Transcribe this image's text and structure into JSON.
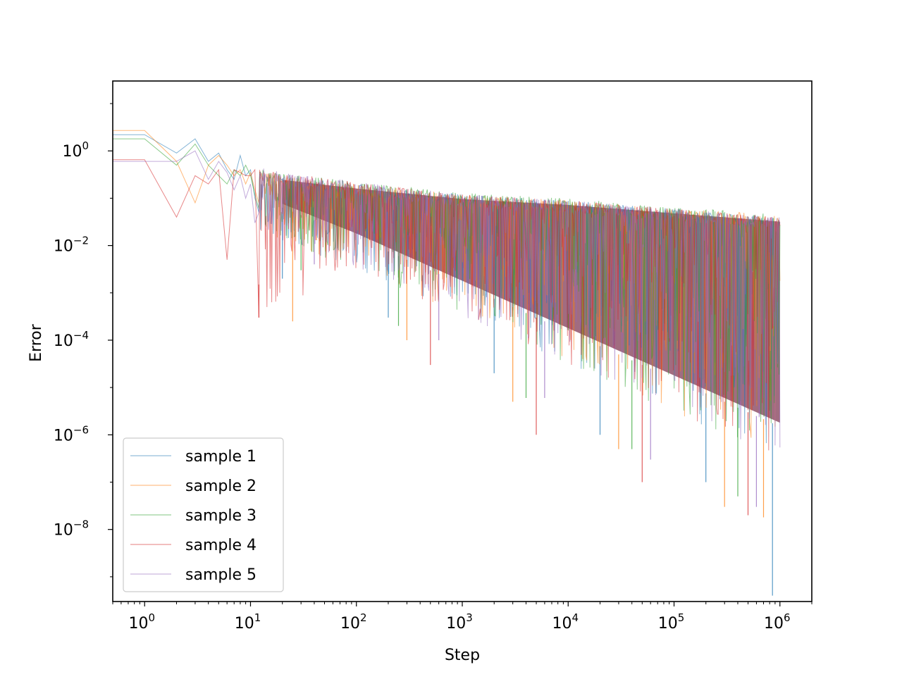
{
  "chart_data": {
    "type": "line",
    "title": "",
    "xlabel": "Step",
    "ylabel": "Error",
    "xscale": "log",
    "yscale": "log",
    "xlim": [
      0.5,
      2000000
    ],
    "ylim": [
      3e-10,
      30
    ],
    "xticks": [
      {
        "value": 1,
        "base": "10",
        "exp": "0"
      },
      {
        "value": 10,
        "base": "10",
        "exp": "1"
      },
      {
        "value": 100,
        "base": "10",
        "exp": "2"
      },
      {
        "value": 1000,
        "base": "10",
        "exp": "3"
      },
      {
        "value": 10000,
        "base": "10",
        "exp": "4"
      },
      {
        "value": 100000,
        "base": "10",
        "exp": "5"
      },
      {
        "value": 1000000,
        "base": "10",
        "exp": "6"
      }
    ],
    "yticks": [
      {
        "value": 1,
        "base": "10",
        "exp": "0"
      },
      {
        "value": 0.01,
        "base": "10",
        "exp": "−2"
      },
      {
        "value": 0.0001,
        "base": "10",
        "exp": "−4"
      },
      {
        "value": 1e-06,
        "base": "10",
        "exp": "−6"
      },
      {
        "value": 1e-08,
        "base": "10",
        "exp": "−8"
      }
    ],
    "grid": false,
    "legend_position": "lower-left",
    "series": [
      {
        "name": "sample 1",
        "color": "#1f77b4",
        "x": [
          0,
          1,
          2,
          3,
          4,
          5,
          6,
          7,
          8,
          9,
          10,
          11,
          12
        ],
        "y": [
          2.2,
          2.2,
          0.9,
          1.8,
          0.6,
          0.9,
          0.4,
          0.25,
          0.8,
          0.3,
          0.4,
          0.1,
          0.05
        ],
        "envelope": {
          "x_start": 12,
          "x_end": 1000000,
          "upper": [
            [
              12,
              0.35
            ],
            [
              100,
              0.2
            ],
            [
              1000,
              0.12
            ],
            [
              10000,
              0.09
            ],
            [
              100000,
              0.06
            ],
            [
              1000000,
              0.04
            ]
          ],
          "lower": [
            [
              12,
              0.02
            ],
            [
              100,
              0.003
            ],
            [
              1000,
              0.0003
            ],
            [
              10000,
              3e-05
            ],
            [
              100000,
              3e-06
            ],
            [
              1000000,
              3e-07
            ]
          ],
          "min_spike": [
            [
              20,
              0.002
            ],
            [
              200,
              0.0003
            ],
            [
              2000,
              2e-05
            ],
            [
              20000,
              1e-06
            ],
            [
              200000,
              1e-07
            ],
            [
              850000,
              4e-10
            ]
          ]
        }
      },
      {
        "name": "sample 2",
        "color": "#ff7f0e",
        "x": [
          0,
          1,
          2,
          3,
          4,
          5,
          6,
          7,
          8,
          9,
          10,
          11,
          12
        ],
        "y": [
          2.7,
          2.7,
          0.6,
          0.08,
          0.5,
          0.8,
          0.5,
          0.3,
          0.4,
          0.2,
          0.35,
          0.15,
          0.08
        ],
        "envelope": {
          "x_start": 12,
          "x_end": 1000000,
          "upper": [
            [
              12,
              0.35
            ],
            [
              100,
              0.2
            ],
            [
              1000,
              0.12
            ],
            [
              10000,
              0.09
            ],
            [
              100000,
              0.06
            ],
            [
              1000000,
              0.045
            ]
          ],
          "lower": [
            [
              12,
              0.02
            ],
            [
              100,
              0.003
            ],
            [
              1000,
              0.0003
            ],
            [
              10000,
              3e-05
            ],
            [
              100000,
              3e-06
            ],
            [
              1000000,
              3e-07
            ]
          ],
          "min_spike": [
            [
              25,
              0.00025
            ],
            [
              300,
              0.0001
            ],
            [
              3000,
              5e-06
            ],
            [
              30000,
              5e-07
            ],
            [
              300000,
              3e-08
            ],
            [
              700000,
              1.8e-08
            ]
          ]
        }
      },
      {
        "name": "sample 3",
        "color": "#2ca02c",
        "x": [
          0,
          1,
          2,
          3,
          4,
          5,
          6,
          7,
          8,
          9,
          10,
          11,
          12
        ],
        "y": [
          1.8,
          1.8,
          0.5,
          1.4,
          0.5,
          0.3,
          0.2,
          0.4,
          0.3,
          0.5,
          0.3,
          0.12,
          0.06
        ],
        "envelope": {
          "x_start": 12,
          "x_end": 1000000,
          "upper": [
            [
              12,
              0.4
            ],
            [
              100,
              0.22
            ],
            [
              1000,
              0.13
            ],
            [
              10000,
              0.1
            ],
            [
              100000,
              0.065
            ],
            [
              1000000,
              0.045
            ]
          ],
          "lower": [
            [
              12,
              0.02
            ],
            [
              100,
              0.003
            ],
            [
              1000,
              0.0003
            ],
            [
              10000,
              3e-05
            ],
            [
              100000,
              3e-06
            ],
            [
              1000000,
              3e-07
            ]
          ],
          "min_spike": [
            [
              30,
              0.003
            ],
            [
              250,
              0.0002
            ],
            [
              4000,
              6e-06
            ],
            [
              40000,
              5e-07
            ],
            [
              400000,
              5e-08
            ]
          ]
        }
      },
      {
        "name": "sample 4",
        "color": "#d62728",
        "x": [
          0,
          1,
          2,
          3,
          4,
          5,
          6,
          7,
          8,
          9,
          10,
          11,
          12
        ],
        "y": [
          0.65,
          0.65,
          0.04,
          0.3,
          0.2,
          0.4,
          0.005,
          0.4,
          0.35,
          0.3,
          0.3,
          0.4,
          0.0003
        ],
        "envelope": {
          "x_start": 12,
          "x_end": 1000000,
          "upper": [
            [
              12,
              0.4
            ],
            [
              100,
              0.22
            ],
            [
              1000,
              0.12
            ],
            [
              10000,
              0.09
            ],
            [
              100000,
              0.06
            ],
            [
              1000000,
              0.04
            ]
          ],
          "lower": [
            [
              12,
              0.0003
            ],
            [
              100,
              0.003
            ],
            [
              1000,
              0.0003
            ],
            [
              10000,
              3e-05
            ],
            [
              100000,
              3e-06
            ],
            [
              1000000,
              3e-07
            ]
          ],
          "min_spike": [
            [
              12,
              0.0003
            ],
            [
              500,
              3e-05
            ],
            [
              5000,
              1e-06
            ],
            [
              50000,
              1e-07
            ],
            [
              500000,
              2e-08
            ]
          ]
        }
      },
      {
        "name": "sample 5",
        "color": "#9467bd",
        "x": [
          0,
          1,
          2,
          3,
          4,
          5,
          6,
          7,
          8,
          9,
          10,
          11,
          12
        ],
        "y": [
          0.6,
          0.6,
          0.6,
          1.0,
          0.25,
          0.6,
          0.35,
          0.15,
          0.3,
          0.1,
          0.2,
          0.03,
          0.05
        ],
        "envelope": {
          "x_start": 12,
          "x_end": 1000000,
          "upper": [
            [
              12,
              0.45
            ],
            [
              100,
              0.22
            ],
            [
              1000,
              0.12
            ],
            [
              10000,
              0.09
            ],
            [
              100000,
              0.06
            ],
            [
              1000000,
              0.04
            ]
          ],
          "lower": [
            [
              12,
              0.02
            ],
            [
              100,
              0.003
            ],
            [
              1000,
              0.0003
            ],
            [
              10000,
              3e-05
            ],
            [
              100000,
              3e-06
            ],
            [
              1000000,
              3e-07
            ]
          ],
          "min_spike": [
            [
              40,
              0.004
            ],
            [
              600,
              0.0001
            ],
            [
              6000,
              6e-06
            ],
            [
              60000,
              3e-07
            ],
            [
              600000,
              3e-08
            ]
          ]
        }
      }
    ],
    "fill_color": "#9c6479"
  }
}
